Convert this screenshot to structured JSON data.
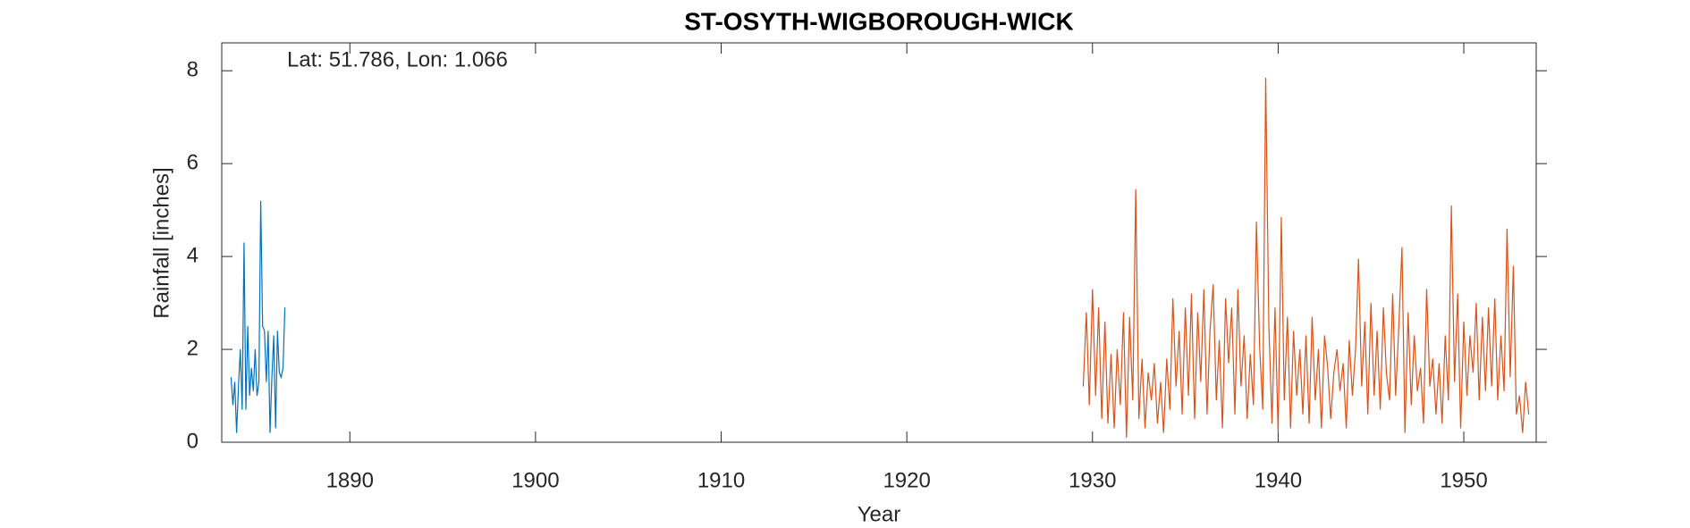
{
  "chart_data": {
    "type": "line",
    "title": "ST-OSYTH-WIGBOROUGH-WICK",
    "annotation": "Lat: 51.786, Lon: 1.066",
    "xlabel": "Year",
    "ylabel": "Rainfall [inches]",
    "xlim": [
      1883.1,
      1953.9
    ],
    "ylim": [
      0,
      8.6
    ],
    "xticks": [
      1890,
      1900,
      1910,
      1920,
      1930,
      1940,
      1950
    ],
    "yticks": [
      0,
      2,
      4,
      6,
      8
    ],
    "series": [
      {
        "color": "#0072bd",
        "x": [
          1883.6,
          1883.7,
          1883.8,
          1883.9,
          1884.0,
          1884.1,
          1884.2,
          1884.3,
          1884.4,
          1884.5,
          1884.6,
          1884.7,
          1884.8,
          1884.9,
          1885.0,
          1885.1,
          1885.2,
          1885.3,
          1885.4,
          1885.5,
          1885.6,
          1885.7,
          1885.8,
          1885.9,
          1886.0,
          1886.1,
          1886.2,
          1886.3,
          1886.4,
          1886.5
        ],
        "values": [
          1.4,
          0.8,
          1.3,
          0.2,
          1.2,
          2.0,
          0.7,
          4.3,
          0.7,
          2.5,
          1.0,
          1.6,
          1.1,
          2.0,
          1.0,
          1.3,
          5.2,
          2.5,
          2.4,
          1.3,
          2.4,
          0.2,
          1.4,
          2.3,
          0.3,
          2.4,
          1.5,
          1.4,
          1.6,
          2.9
        ]
      },
      {
        "color": "#d95319",
        "x": [
          1929.5,
          1929.67,
          1929.83,
          1930,
          1930.17,
          1930.33,
          1930.5,
          1930.67,
          1930.83,
          1931,
          1931.17,
          1931.33,
          1931.5,
          1931.67,
          1931.83,
          1932,
          1932.17,
          1932.33,
          1932.5,
          1932.67,
          1932.83,
          1933,
          1933.17,
          1933.33,
          1933.5,
          1933.67,
          1933.83,
          1934,
          1934.17,
          1934.33,
          1934.5,
          1934.67,
          1934.83,
          1935,
          1935.17,
          1935.33,
          1935.5,
          1935.67,
          1935.83,
          1936,
          1936.17,
          1936.33,
          1936.5,
          1936.67,
          1936.83,
          1937,
          1937.17,
          1937.33,
          1937.5,
          1937.67,
          1937.83,
          1938,
          1938.17,
          1938.33,
          1938.5,
          1938.67,
          1938.83,
          1939,
          1939.17,
          1939.33,
          1939.5,
          1939.67,
          1939.83,
          1940,
          1940.17,
          1940.33,
          1940.5,
          1940.67,
          1940.83,
          1941,
          1941.17,
          1941.33,
          1941.5,
          1941.67,
          1941.83,
          1942,
          1942.17,
          1942.33,
          1942.5,
          1942.67,
          1942.83,
          1943,
          1943.17,
          1943.33,
          1943.5,
          1943.67,
          1943.83,
          1944,
          1944.17,
          1944.33,
          1944.5,
          1944.67,
          1944.83,
          1945,
          1945.17,
          1945.33,
          1945.5,
          1945.67,
          1945.83,
          1946,
          1946.17,
          1946.33,
          1946.5,
          1946.67,
          1946.83,
          1947,
          1947.17,
          1947.33,
          1947.5,
          1947.67,
          1947.83,
          1948,
          1948.17,
          1948.33,
          1948.5,
          1948.67,
          1948.83,
          1949,
          1949.17,
          1949.33,
          1949.5,
          1949.67,
          1949.83,
          1950,
          1950.17,
          1950.33,
          1950.5,
          1950.67,
          1950.83,
          1951,
          1951.17,
          1951.33,
          1951.5,
          1951.67,
          1951.83,
          1952,
          1952.17,
          1952.33,
          1952.5,
          1952.67,
          1952.83,
          1953,
          1953.17,
          1953.33,
          1953.5
        ],
        "values": [
          1.2,
          2.8,
          0.8,
          3.3,
          1.0,
          2.9,
          0.5,
          2.6,
          0.4,
          1.9,
          0.3,
          2.0,
          0.8,
          2.8,
          0.1,
          2.7,
          0.9,
          5.45,
          0.5,
          1.8,
          0.3,
          1.5,
          0.9,
          1.7,
          0.4,
          1.3,
          0.2,
          1.8,
          0.7,
          3.1,
          1.2,
          2.4,
          0.6,
          2.9,
          1.0,
          3.2,
          0.5,
          2.8,
          1.3,
          3.3,
          0.6,
          2.4,
          3.4,
          0.9,
          2.2,
          0.3,
          3.1,
          1.7,
          2.9,
          0.6,
          3.3,
          1.2,
          2.3,
          0.5,
          1.9,
          0.8,
          4.75,
          2.1,
          0.7,
          7.85,
          2.5,
          0.4,
          2.9,
          0.2,
          4.85,
          0.9,
          2.7,
          0.3,
          2.4,
          1.0,
          2.0,
          0.6,
          2.3,
          0.4,
          2.7,
          0.9,
          2.0,
          0.3,
          2.3,
          1.6,
          0.5,
          1.5,
          2.0,
          1.1,
          1.7,
          0.3,
          2.2,
          1.0,
          2.0,
          3.95,
          1.2,
          2.6,
          0.6,
          3.0,
          1.0,
          2.4,
          0.7,
          2.9,
          1.5,
          0.9,
          3.2,
          1.0,
          2.5,
          4.2,
          0.2,
          2.8,
          0.8,
          2.3,
          1.1,
          1.6,
          0.4,
          3.3,
          1.2,
          1.8,
          0.6,
          1.7,
          0.4,
          2.3,
          0.9,
          5.1,
          1.3,
          3.2,
          0.3,
          2.6,
          1.0,
          2.3,
          1.5,
          3.0,
          0.9,
          2.7,
          1.1,
          2.9,
          1.2,
          3.1,
          0.9,
          2.3,
          1.1,
          4.6,
          1.4,
          3.8,
          0.6,
          1.0,
          0.2,
          1.3,
          0.6
        ]
      }
    ]
  }
}
